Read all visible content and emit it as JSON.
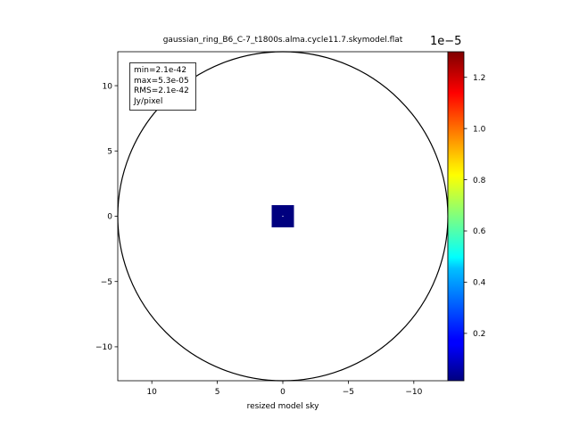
{
  "chart_data": {
    "type": "heatmap",
    "title": "gaussian_ring_B6_C-7_t1800s.alma.cycle11.7.skymodel.flat",
    "xlabel": "resized model sky",
    "ylabel": "",
    "xlim": [
      12.6,
      -12.6
    ],
    "ylim": [
      -12.6,
      12.6
    ],
    "x_ticks": [
      10,
      5,
      0,
      -5,
      -10
    ],
    "y_ticks": [
      10,
      5,
      0,
      -5,
      -10
    ],
    "x_tick_labels": [
      "10",
      "5",
      "0",
      "−5",
      "−10"
    ],
    "y_tick_labels": [
      "10",
      "5",
      "0",
      "−5",
      "−10"
    ],
    "circle": {
      "center": [
        0,
        0
      ],
      "radius": 12.6
    },
    "image_extent": {
      "x": [
        -0.85,
        0.85
      ],
      "y": [
        -0.85,
        0.85
      ]
    },
    "image_value": "min",
    "colorbar": {
      "colormap": "jet",
      "range": [
        1.5e-07,
        1.3e-05
      ],
      "ticks": [
        0.2,
        0.4,
        0.6,
        0.8,
        1.0,
        1.2
      ],
      "tick_labels": [
        "0.2",
        "0.4",
        "0.6",
        "0.8",
        "1.0",
        "1.2"
      ],
      "exponent_label": "1e−5"
    },
    "stats_box": [
      "min=2.1e-42",
      "max=5.3e-05",
      "RMS=2.1e-42",
      "Jy/pixel"
    ],
    "stats_placement": "top-left"
  },
  "colors": {
    "axes": "#000000",
    "image_fill": "#00007f",
    "circle": "#000000"
  }
}
